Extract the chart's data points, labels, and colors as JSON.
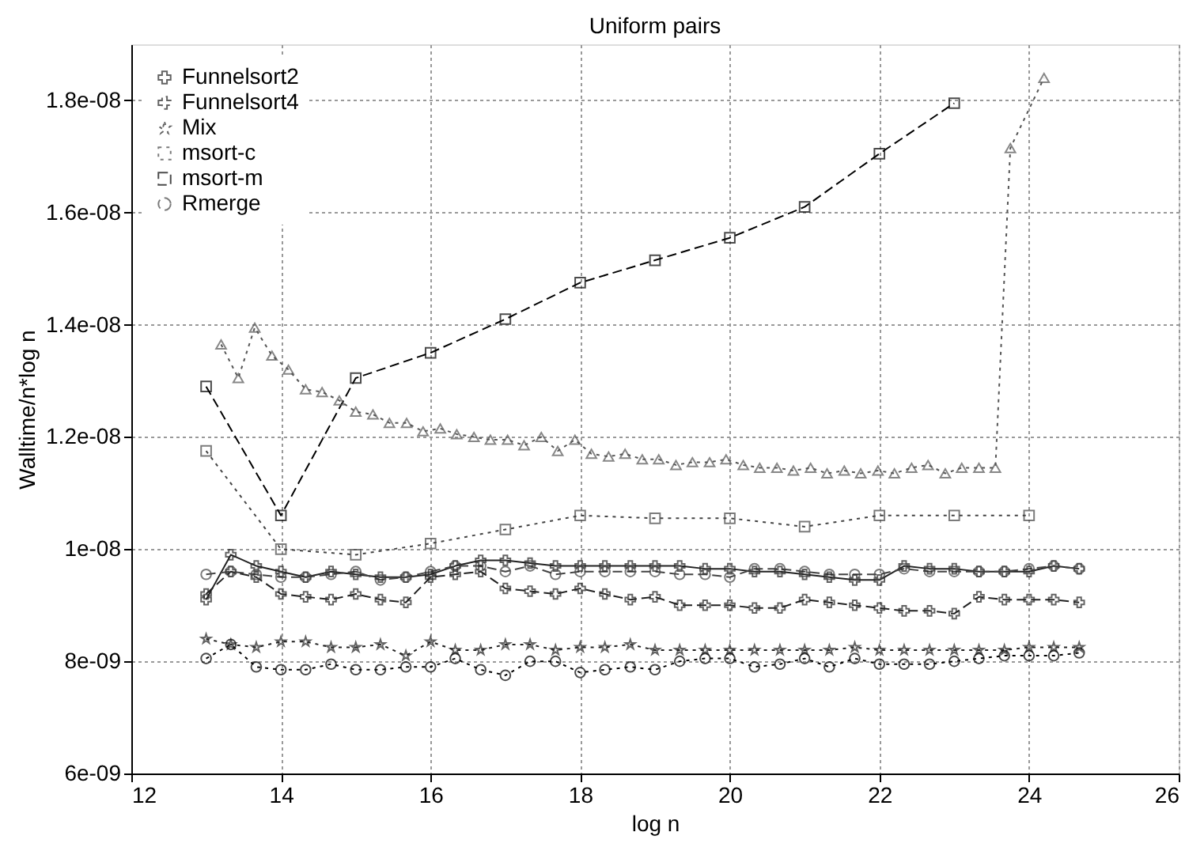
{
  "chart_data": {
    "type": "line",
    "title": "Uniform pairs",
    "xlabel": "log n",
    "ylabel": "Walltime/n*log n",
    "x": [
      13,
      13.33,
      13.67,
      14,
      14.33,
      14.67,
      15,
      15.33,
      15.67,
      16,
      16.33,
      16.67,
      17,
      17.33,
      17.67,
      18,
      18.33,
      18.67,
      19,
      19.33,
      19.67,
      20,
      20.33,
      20.67,
      21,
      21.33,
      21.67,
      22,
      22.33,
      22.67,
      23,
      23.33,
      23.67,
      24,
      24.33,
      24.67
    ],
    "series": [
      {
        "name": "Funnelsort2",
        "color": "#222222",
        "marker": "cross",
        "line_style": "solid",
        "values": [
          9.1e-09,
          9.9e-09,
          9.7e-09,
          9.6e-09,
          9.5e-09,
          9.6e-09,
          9.55e-09,
          9.5e-09,
          9.5e-09,
          9.55e-09,
          9.7e-09,
          9.8e-09,
          9.8e-09,
          9.75e-09,
          9.7e-09,
          9.7e-09,
          9.7e-09,
          9.7e-09,
          9.7e-09,
          9.7e-09,
          9.65e-09,
          9.65e-09,
          9.6e-09,
          9.6e-09,
          9.55e-09,
          9.5e-09,
          9.45e-09,
          9.45e-09,
          9.7e-09,
          9.65e-09,
          9.65e-09,
          9.6e-09,
          9.6e-09,
          9.6e-09,
          9.7e-09,
          9.65e-09
        ]
      },
      {
        "name": "Funnelsort4",
        "color": "#222222",
        "marker": "cross",
        "line_style": "dashed",
        "values": [
          9.2e-09,
          9.6e-09,
          9.5e-09,
          9.2e-09,
          9.15e-09,
          9.1e-09,
          9.2e-09,
          9.1e-09,
          9.05e-09,
          9.5e-09,
          9.55e-09,
          9.6e-09,
          9.3e-09,
          9.25e-09,
          9.2e-09,
          9.3e-09,
          9.2e-09,
          9.1e-09,
          9.15e-09,
          9e-09,
          9e-09,
          9e-09,
          8.95e-09,
          8.95e-09,
          9.1e-09,
          9.05e-09,
          9e-09,
          8.95e-09,
          8.9e-09,
          8.9e-09,
          8.85e-09,
          9.15e-09,
          9.1e-09,
          9.1e-09,
          9.1e-09,
          9.05e-09
        ]
      },
      {
        "name": "Mix",
        "color": "#222222",
        "marker": "star",
        "line_style": "dotted",
        "values": [
          8.4e-09,
          8.3e-09,
          8.25e-09,
          8.35e-09,
          8.35e-09,
          8.25e-09,
          8.25e-09,
          8.3e-09,
          8.1e-09,
          8.35e-09,
          8.2e-09,
          8.2e-09,
          8.3e-09,
          8.3e-09,
          8.2e-09,
          8.25e-09,
          8.25e-09,
          8.3e-09,
          8.2e-09,
          8.2e-09,
          8.2e-09,
          8.2e-09,
          8.2e-09,
          8.2e-09,
          8.2e-09,
          8.2e-09,
          8.25e-09,
          8.2e-09,
          8.2e-09,
          8.2e-09,
          8.2e-09,
          8.2e-09,
          8.2e-09,
          8.25e-09,
          8.25e-09,
          8.25e-09
        ]
      },
      {
        "name": "msort-c",
        "color": "#444444",
        "marker": "square",
        "line_style": "dotted",
        "x": [
          13,
          14,
          15,
          16,
          17,
          18,
          19,
          20,
          21,
          22,
          23,
          24
        ],
        "values": [
          1.175e-08,
          1e-08,
          9.9e-09,
          1.01e-08,
          1.035e-08,
          1.06e-08,
          1.055e-08,
          1.055e-08,
          1.04e-08,
          1.06e-08,
          1.06e-08,
          1.06e-08
        ]
      },
      {
        "name": "msort-m",
        "color": "#000000",
        "marker": "square",
        "line_style": "dashed",
        "x": [
          13,
          14,
          15,
          16,
          17,
          18,
          19,
          20,
          21,
          22,
          23
        ],
        "values": [
          1.29e-08,
          1.06e-08,
          1.305e-08,
          1.35e-08,
          1.41e-08,
          1.475e-08,
          1.515e-08,
          1.555e-08,
          1.61e-08,
          1.705e-08,
          1.795e-08
        ]
      },
      {
        "name": "Rmerge",
        "color": "#444444",
        "marker": "circle",
        "line_style": "dashed",
        "values": [
          9.55e-09,
          9.6e-09,
          9.55e-09,
          9.5e-09,
          9.5e-09,
          9.55e-09,
          9.6e-09,
          9.45e-09,
          9.5e-09,
          9.6e-09,
          9.7e-09,
          9.7e-09,
          9.6e-09,
          9.7e-09,
          9.55e-09,
          9.6e-09,
          9.6e-09,
          9.6e-09,
          9.6e-09,
          9.55e-09,
          9.55e-09,
          9.5e-09,
          9.65e-09,
          9.65e-09,
          9.6e-09,
          9.55e-09,
          9.55e-09,
          9.55e-09,
          9.65e-09,
          9.6e-09,
          9.6e-09,
          9.6e-09,
          9.6e-09,
          9.65e-09,
          9.7e-09,
          9.65e-09
        ]
      },
      {
        "color": "#000000",
        "marker": "circle",
        "line_style": "dotted",
        "values": [
          8.05e-09,
          8.3e-09,
          7.9e-09,
          7.85e-09,
          7.85e-09,
          7.95e-09,
          7.85e-09,
          7.85e-09,
          7.9e-09,
          7.9e-09,
          8.05e-09,
          7.85e-09,
          7.75e-09,
          8e-09,
          8e-09,
          7.8e-09,
          7.85e-09,
          7.9e-09,
          7.85e-09,
          8e-09,
          8.05e-09,
          8.05e-09,
          7.9e-09,
          7.95e-09,
          8.05e-09,
          7.9e-09,
          8.05e-09,
          7.95e-09,
          7.95e-09,
          7.95e-09,
          8e-09,
          8.05e-09,
          8.1e-09,
          8.1e-09,
          8.1e-09,
          8.15e-09
        ]
      },
      {
        "color": "#555555",
        "marker": "triangle",
        "line_style": "dotted",
        "x": [
          13.2,
          13.43,
          13.65,
          13.88,
          14.1,
          14.33,
          14.55,
          14.78,
          15.0,
          15.23,
          15.45,
          15.68,
          15.9,
          16.13,
          16.35,
          16.58,
          16.8,
          17.03,
          17.25,
          17.48,
          17.7,
          17.93,
          18.15,
          18.38,
          18.6,
          18.83,
          19.05,
          19.28,
          19.5,
          19.73,
          19.95,
          20.18,
          20.4,
          20.63,
          20.85,
          21.08,
          21.3,
          21.53,
          21.75,
          21.98,
          22.2,
          22.43,
          22.65,
          22.88,
          23.1,
          23.33,
          23.55,
          23.75,
          24.2
        ],
        "values": [
          1.365e-08,
          1.305e-08,
          1.395e-08,
          1.345e-08,
          1.32e-08,
          1.285e-08,
          1.28e-08,
          1.265e-08,
          1.245e-08,
          1.24e-08,
          1.225e-08,
          1.225e-08,
          1.21e-08,
          1.215e-08,
          1.205e-08,
          1.2e-08,
          1.195e-08,
          1.195e-08,
          1.185e-08,
          1.2e-08,
          1.175e-08,
          1.195e-08,
          1.17e-08,
          1.165e-08,
          1.17e-08,
          1.16e-08,
          1.16e-08,
          1.15e-08,
          1.155e-08,
          1.155e-08,
          1.16e-08,
          1.15e-08,
          1.145e-08,
          1.145e-08,
          1.14e-08,
          1.145e-08,
          1.135e-08,
          1.14e-08,
          1.135e-08,
          1.14e-08,
          1.135e-08,
          1.145e-08,
          1.15e-08,
          1.135e-08,
          1.145e-08,
          1.145e-08,
          1.145e-08,
          1.715e-08,
          1.84e-08
        ]
      }
    ],
    "xlim": [
      12,
      26
    ],
    "xticks": [
      12,
      14,
      16,
      18,
      20,
      22,
      24,
      26
    ],
    "ylim": [
      6e-09,
      1.9e-08
    ],
    "yticks": [
      {
        "value": 6e-09,
        "label": "6e-09"
      },
      {
        "value": 8e-09,
        "label": "8e-09"
      },
      {
        "value": 1e-08,
        "label": "1e-08"
      },
      {
        "value": 1.2e-08,
        "label": "1.2e-08"
      },
      {
        "value": 1.4e-08,
        "label": "1.4e-08"
      },
      {
        "value": 1.6e-08,
        "label": "1.6e-08"
      },
      {
        "value": 1.8e-08,
        "label": "1.8e-08"
      }
    ],
    "grid": true,
    "legend": "top left"
  }
}
